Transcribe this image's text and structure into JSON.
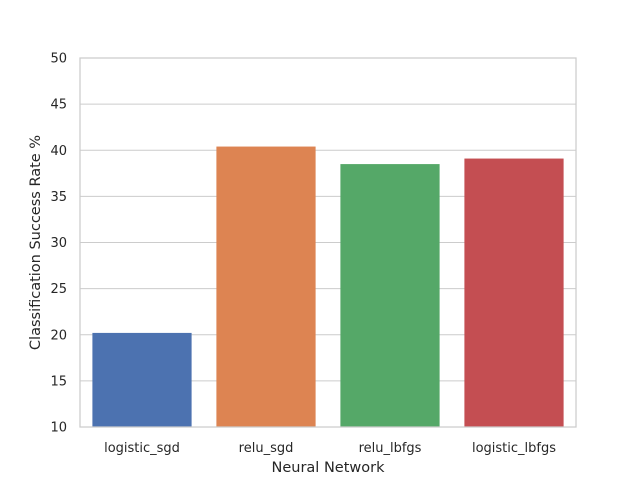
{
  "chart_data": {
    "type": "bar",
    "title": "",
    "xlabel": "Neural Network",
    "ylabel": "Classification Success Rate %",
    "categories": [
      "logistic_sgd",
      "relu_sgd",
      "relu_lbfgs",
      "logistic_lbfgs"
    ],
    "values": [
      20.2,
      40.4,
      38.5,
      39.1
    ],
    "colors": [
      "#4c72b0",
      "#dd8452",
      "#55a868",
      "#c44e52"
    ],
    "ylim": [
      10,
      50
    ],
    "yticks": [
      10,
      15,
      20,
      25,
      30,
      35,
      40,
      45,
      50
    ],
    "grid": true,
    "legend": "none"
  }
}
